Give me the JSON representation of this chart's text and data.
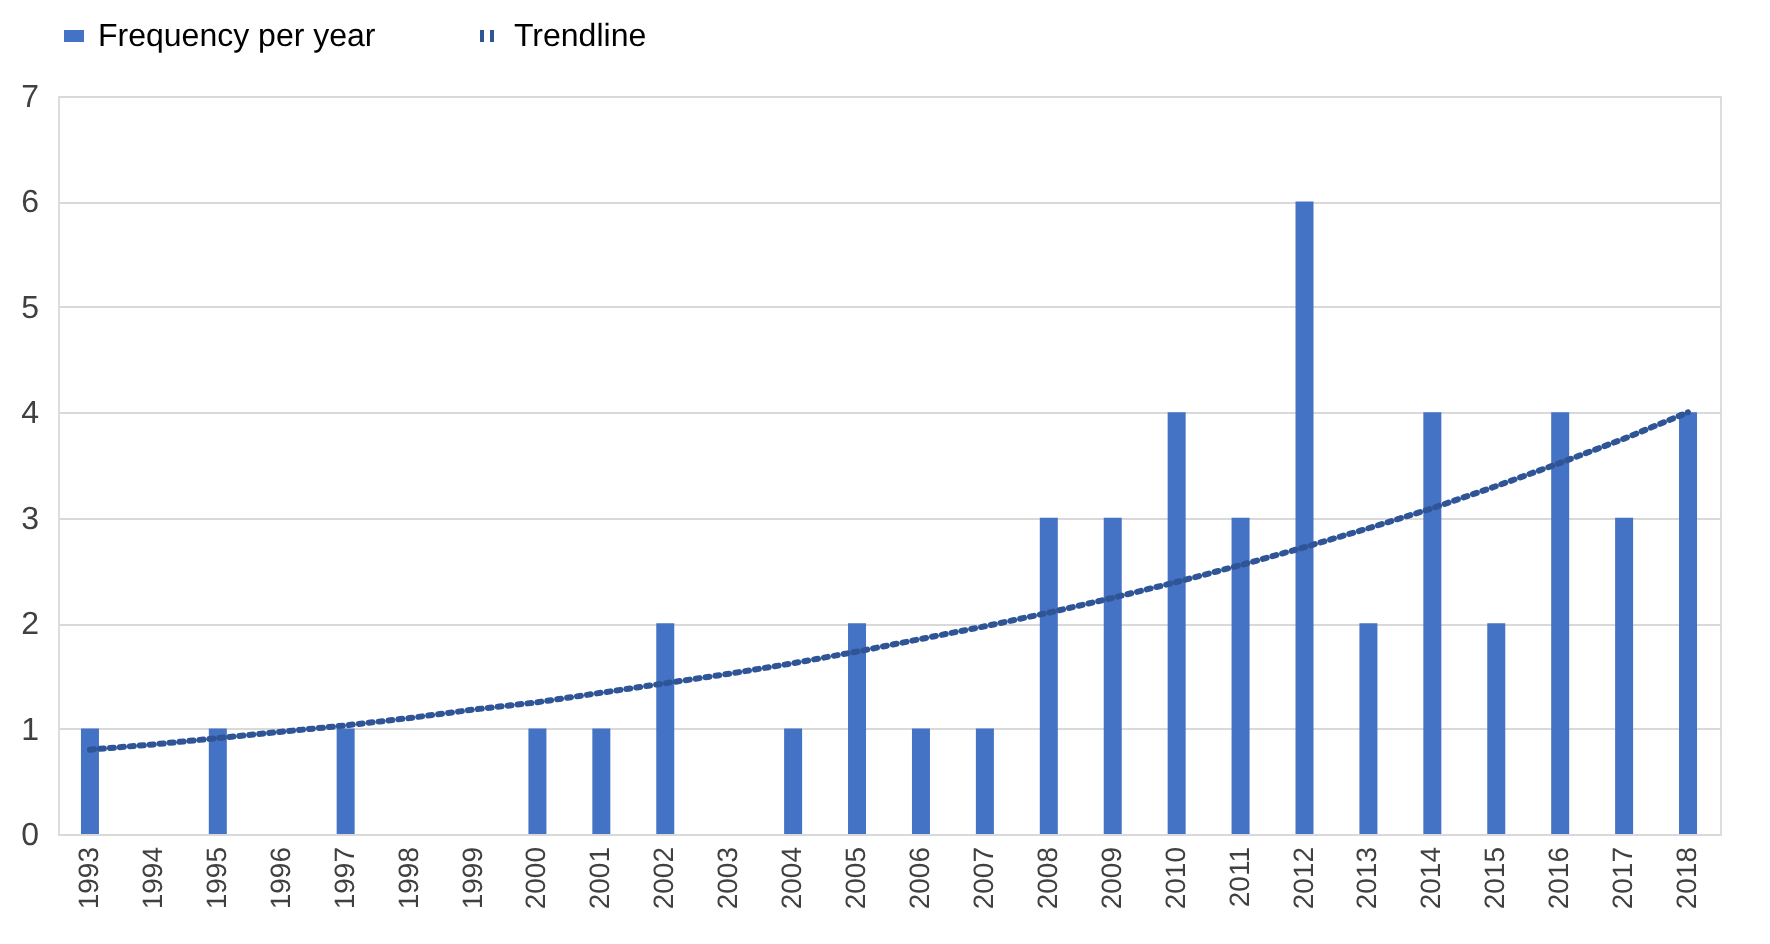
{
  "chart_data": {
    "type": "bar",
    "categories": [
      "1993",
      "1994",
      "1995",
      "1996",
      "1997",
      "1998",
      "1999",
      "2000",
      "2001",
      "2002",
      "2003",
      "2004",
      "2005",
      "2006",
      "2007",
      "2008",
      "2009",
      "2010",
      "2011",
      "2012",
      "2013",
      "2014",
      "2015",
      "2016",
      "2017",
      "2018"
    ],
    "series": [
      {
        "name": "Frequency per year",
        "color": "#4472c4",
        "values": [
          1,
          0,
          1,
          0,
          1,
          0,
          0,
          1,
          1,
          2,
          0,
          1,
          2,
          1,
          1,
          3,
          3,
          4,
          3,
          6,
          2,
          4,
          2,
          4,
          3,
          4
        ]
      },
      {
        "name": "Trendline",
        "type": "line",
        "line_style": "dotted",
        "color": "#2f5597",
        "values": [
          0.8,
          0.85,
          0.91,
          0.97,
          1.03,
          1.1,
          1.18,
          1.25,
          1.34,
          1.43,
          1.52,
          1.62,
          1.73,
          1.85,
          1.97,
          2.1,
          2.24,
          2.39,
          2.55,
          2.72,
          2.9,
          3.09,
          3.3,
          3.52,
          3.75,
          4.0
        ]
      }
    ],
    "ylim": [
      0,
      7
    ],
    "yticks": [
      0,
      1,
      2,
      3,
      4,
      5,
      6,
      7
    ],
    "grid": "y",
    "legend": "top"
  }
}
